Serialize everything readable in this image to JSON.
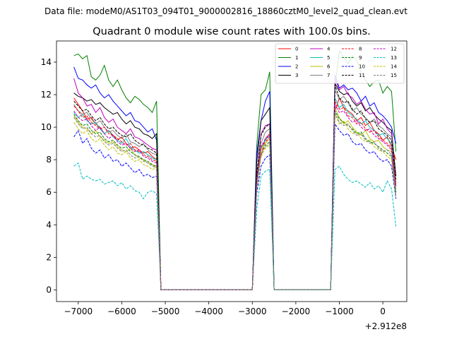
{
  "header": {
    "data_file": "Data file: modeM0/AS1T03_094T01_9000002816_18860cztM0_level2_quad_clean.evt"
  },
  "chart_data": {
    "type": "line",
    "title": "Quadrant 0 module wise count rates with 100.0s bins.",
    "xlabel": "",
    "ylabel": "",
    "x_offset_label": "+2.912e8",
    "xlim": [
      -7500,
      550
    ],
    "ylim": [
      -0.72,
      15.3
    ],
    "xticks": [
      -7000,
      -6000,
      -5000,
      -4000,
      -3000,
      -2000,
      -1000,
      0
    ],
    "xtick_labels": [
      "−7000",
      "−6000",
      "−5000",
      "−4000",
      "−3000",
      "−2000",
      "−1000",
      "0"
    ],
    "yticks": [
      0,
      2,
      4,
      6,
      8,
      10,
      12,
      14
    ],
    "ytick_labels": [
      "0",
      "2",
      "4",
      "6",
      "8",
      "10",
      "12",
      "14"
    ],
    "legend_position": "upper right",
    "segments": [
      {
        "x0": -7100,
        "x1": -5200
      },
      {
        "x0": -2900,
        "x1": -2600
      },
      {
        "x0": -1100,
        "x1": 300
      }
    ],
    "gaps": [
      [
        -5100,
        -3000
      ],
      [
        -2500,
        -1200
      ]
    ],
    "series": [
      {
        "name": "0",
        "color": "#ff0000",
        "dash": "solid",
        "seg1": [
          11.8,
          11.4,
          11.0,
          10.5,
          10.6,
          10.2,
          10.0,
          9.6,
          9.8,
          9.5,
          9.2,
          9.4,
          9.0,
          8.7,
          8.8,
          8.6,
          8.4,
          8.5,
          8.2,
          8.0
        ],
        "seg2": [
          7.0,
          8.2,
          9.3,
          9.6
        ],
        "seg3": [
          11.0,
          11.8,
          11.2,
          11.0,
          10.8,
          10.4,
          10.6,
          10.1,
          10.3,
          9.8,
          9.6,
          9.2,
          9.4,
          8.8,
          8.0
        ]
      },
      {
        "name": "1",
        "color": "#008000",
        "dash": "solid",
        "seg1": [
          14.4,
          14.5,
          14.2,
          14.4,
          13.1,
          12.9,
          13.2,
          13.8,
          12.9,
          12.5,
          12.9,
          12.3,
          11.8,
          11.5,
          11.9,
          11.7,
          11.4,
          11.2,
          10.9,
          11.6
        ],
        "seg2": [
          8.8,
          12.0,
          12.3,
          13.4
        ],
        "seg3": [
          12.4,
          14.7,
          14.3,
          13.9,
          14.4,
          14.1,
          13.4,
          12.9,
          12.5,
          12.8,
          12.9,
          12.1,
          12.5,
          12.2,
          8.5
        ]
      },
      {
        "name": "2",
        "color": "#0000ff",
        "dash": "solid",
        "seg1": [
          13.7,
          13.0,
          12.9,
          12.6,
          12.4,
          12.6,
          12.1,
          11.8,
          12.0,
          11.6,
          11.3,
          11.0,
          10.7,
          10.9,
          10.4,
          10.3,
          10.0,
          9.7,
          9.9,
          9.2
        ],
        "seg2": [
          8.3,
          10.4,
          11.6,
          12.2
        ],
        "seg3": [
          13.2,
          12.4,
          12.6,
          12.3,
          12.4,
          12.1,
          11.6,
          11.9,
          11.3,
          11.5,
          10.9,
          10.7,
          10.4,
          10.0,
          9.0
        ]
      },
      {
        "name": "3",
        "color": "#000000",
        "dash": "solid",
        "seg1": [
          12.1,
          11.9,
          11.8,
          11.6,
          11.7,
          11.4,
          11.5,
          11.2,
          11.0,
          10.8,
          10.9,
          10.5,
          10.2,
          10.4,
          10.0,
          9.9,
          9.6,
          9.5,
          9.3,
          9.6
        ],
        "seg2": [
          7.8,
          10.4,
          10.8,
          11.2
        ],
        "seg3": [
          12.7,
          12.2,
          12.0,
          12.1,
          11.6,
          11.3,
          11.5,
          11.0,
          11.2,
          10.8,
          10.5,
          10.3,
          10.0,
          9.8,
          7.0
        ]
      },
      {
        "name": "4",
        "color": "#bf00bf",
        "dash": "solid",
        "seg1": [
          13.0,
          12.1,
          11.8,
          11.3,
          11.4,
          10.9,
          11.2,
          10.6,
          10.3,
          10.5,
          10.0,
          9.8,
          9.6,
          9.9,
          9.4,
          9.3,
          9.1,
          8.9,
          8.7,
          8.6
        ],
        "seg2": [
          6.8,
          9.6,
          10.1,
          10.2
        ],
        "seg3": [
          13.0,
          12.3,
          12.5,
          12.0,
          11.8,
          11.4,
          11.6,
          11.1,
          10.8,
          10.9,
          10.2,
          10.5,
          9.9,
          9.6,
          6.5
        ]
      },
      {
        "name": "5",
        "color": "#00bfbf",
        "dash": "solid",
        "seg1": [
          10.9,
          10.6,
          10.8,
          10.4,
          10.2,
          10.3,
          9.9,
          9.6,
          9.8,
          9.4,
          9.2,
          9.0,
          9.3,
          8.8,
          8.6,
          8.4,
          8.5,
          8.3,
          8.1,
          8.0
        ],
        "seg2": [
          6.6,
          8.7,
          9.2,
          9.5
        ],
        "seg3": [
          11.8,
          11.2,
          11.4,
          10.9,
          10.7,
          10.5,
          10.2,
          10.4,
          10.0,
          9.8,
          9.5,
          9.6,
          9.3,
          9.0,
          6.0
        ]
      },
      {
        "name": "6",
        "color": "#bfbf00",
        "dash": "solid",
        "seg1": [
          10.7,
          10.3,
          10.0,
          9.9,
          9.6,
          9.8,
          9.4,
          9.2,
          9.0,
          9.1,
          8.8,
          8.6,
          8.5,
          8.7,
          8.3,
          8.1,
          8.0,
          7.8,
          7.7,
          7.5
        ],
        "seg2": [
          6.4,
          8.6,
          9.0,
          9.3
        ],
        "seg3": [
          11.2,
          10.6,
          10.2,
          10.4,
          10.0,
          9.7,
          9.5,
          9.8,
          9.3,
          9.1,
          9.2,
          8.8,
          8.6,
          8.5,
          6.2
        ]
      },
      {
        "name": "7",
        "color": "#808080",
        "dash": "solid",
        "seg1": [
          11.4,
          11.0,
          10.8,
          10.9,
          10.5,
          10.2,
          10.4,
          10.0,
          9.7,
          9.8,
          9.5,
          9.3,
          9.6,
          9.1,
          9.0,
          8.8,
          9.0,
          8.6,
          8.4,
          8.3
        ],
        "seg2": [
          6.9,
          9.0,
          9.7,
          9.9
        ],
        "seg3": [
          12.3,
          11.7,
          11.9,
          11.5,
          11.0,
          11.2,
          10.8,
          10.6,
          10.3,
          10.5,
          10.1,
          9.9,
          9.6,
          9.4,
          6.6
        ]
      },
      {
        "name": "8",
        "color": "#ff0000",
        "dash": "dashed",
        "seg1": [
          11.3,
          11.0,
          10.6,
          10.7,
          10.3,
          10.1,
          9.9,
          10.0,
          9.6,
          9.5,
          9.3,
          9.1,
          8.9,
          9.0,
          8.6,
          8.5,
          8.3,
          8.2,
          8.0,
          7.9
        ],
        "seg2": [
          6.8,
          8.8,
          9.1,
          9.4
        ],
        "seg3": [
          11.6,
          11.1,
          11.2,
          10.7,
          10.6,
          10.2,
          10.3,
          9.9,
          9.7,
          9.8,
          9.4,
          9.2,
          9.0,
          8.7,
          6.4
        ]
      },
      {
        "name": "9",
        "color": "#008000",
        "dash": "dashed",
        "seg1": [
          10.8,
          10.4,
          10.1,
          10.2,
          9.8,
          9.6,
          9.7,
          9.3,
          9.1,
          9.2,
          8.9,
          8.7,
          8.8,
          8.5,
          8.3,
          8.2,
          8.0,
          7.9,
          7.7,
          7.6
        ],
        "seg2": [
          6.5,
          8.3,
          8.9,
          9.1
        ],
        "seg3": [
          11.0,
          10.5,
          10.3,
          10.1,
          9.9,
          9.6,
          9.7,
          9.3,
          9.1,
          9.0,
          8.8,
          8.6,
          8.4,
          8.2,
          6.0
        ]
      },
      {
        "name": "10",
        "color": "#0000ff",
        "dash": "dashed",
        "seg1": [
          9.4,
          9.8,
          9.0,
          9.3,
          8.7,
          8.4,
          8.6,
          8.1,
          8.3,
          7.9,
          8.0,
          7.6,
          7.8,
          7.5,
          7.2,
          7.4,
          7.0,
          7.1,
          6.9,
          7.0
        ],
        "seg2": [
          5.9,
          7.6,
          8.1,
          8.3
        ],
        "seg3": [
          10.2,
          9.8,
          9.5,
          9.6,
          9.1,
          8.9,
          9.0,
          8.6,
          8.4,
          8.5,
          8.1,
          7.9,
          8.0,
          7.6,
          5.6
        ]
      },
      {
        "name": "11",
        "color": "#000000",
        "dash": "dashed",
        "seg1": [
          11.6,
          11.3,
          11.0,
          11.1,
          10.7,
          10.4,
          10.6,
          10.2,
          9.9,
          10.0,
          9.7,
          9.5,
          9.4,
          9.6,
          9.2,
          9.0,
          8.9,
          8.7,
          8.6,
          8.4
        ],
        "seg2": [
          7.1,
          9.5,
          10.0,
          10.2
        ],
        "seg3": [
          12.6,
          11.8,
          11.5,
          11.6,
          11.1,
          10.8,
          11.0,
          10.5,
          10.3,
          10.4,
          9.9,
          9.7,
          9.5,
          9.2,
          6.8
        ]
      },
      {
        "name": "12",
        "color": "#bf00bf",
        "dash": "dashed",
        "seg1": [
          11.0,
          10.6,
          10.4,
          10.5,
          10.1,
          9.8,
          10.0,
          9.6,
          9.3,
          9.5,
          9.1,
          8.9,
          9.0,
          8.7,
          8.5,
          8.6,
          8.2,
          8.1,
          7.9,
          7.8
        ],
        "seg2": [
          6.7,
          8.8,
          9.3,
          9.5
        ],
        "seg3": [
          11.4,
          10.9,
          11.0,
          10.6,
          10.3,
          10.4,
          10.0,
          9.8,
          9.9,
          9.5,
          9.3,
          9.1,
          8.9,
          8.6,
          6.3
        ]
      },
      {
        "name": "13",
        "color": "#00bfbf",
        "dash": "dashed",
        "seg1": [
          7.6,
          7.8,
          6.8,
          7.0,
          6.8,
          6.7,
          6.8,
          6.5,
          6.6,
          6.7,
          6.4,
          6.6,
          6.2,
          6.4,
          6.1,
          6.0,
          5.6,
          6.0,
          6.1,
          5.9
        ],
        "seg2": [
          4.9,
          7.0,
          7.3,
          7.4
        ],
        "seg3": [
          7.4,
          7.6,
          7.1,
          6.8,
          6.6,
          6.7,
          6.5,
          6.3,
          6.6,
          6.2,
          6.4,
          6.0,
          6.7,
          6.2,
          3.9
        ]
      },
      {
        "name": "14",
        "color": "#bfbf00",
        "dash": "dashed",
        "seg1": [
          10.3,
          9.9,
          9.6,
          9.8,
          9.3,
          9.1,
          9.3,
          8.9,
          8.6,
          8.8,
          8.4,
          8.3,
          8.5,
          8.1,
          7.9,
          8.0,
          7.7,
          7.6,
          7.4,
          7.5
        ],
        "seg2": [
          6.2,
          8.2,
          8.7,
          8.9
        ],
        "seg3": [
          10.8,
          10.2,
          10.4,
          9.9,
          9.6,
          9.7,
          9.3,
          9.1,
          9.2,
          8.8,
          8.6,
          8.5,
          8.2,
          8.0,
          5.7
        ]
      },
      {
        "name": "15",
        "color": "#808080",
        "dash": "dashed",
        "seg1": [
          10.6,
          10.2,
          9.9,
          10.0,
          9.6,
          9.4,
          9.5,
          9.1,
          8.9,
          9.0,
          8.7,
          8.5,
          8.6,
          8.3,
          8.1,
          8.2,
          7.9,
          7.8,
          7.6,
          7.5
        ],
        "seg2": [
          6.3,
          8.4,
          8.8,
          9.0
        ],
        "seg3": [
          10.9,
          10.3,
          10.1,
          10.2,
          9.8,
          9.5,
          9.6,
          9.2,
          9.0,
          9.1,
          8.7,
          8.5,
          8.6,
          8.3,
          5.8
        ]
      }
    ]
  }
}
